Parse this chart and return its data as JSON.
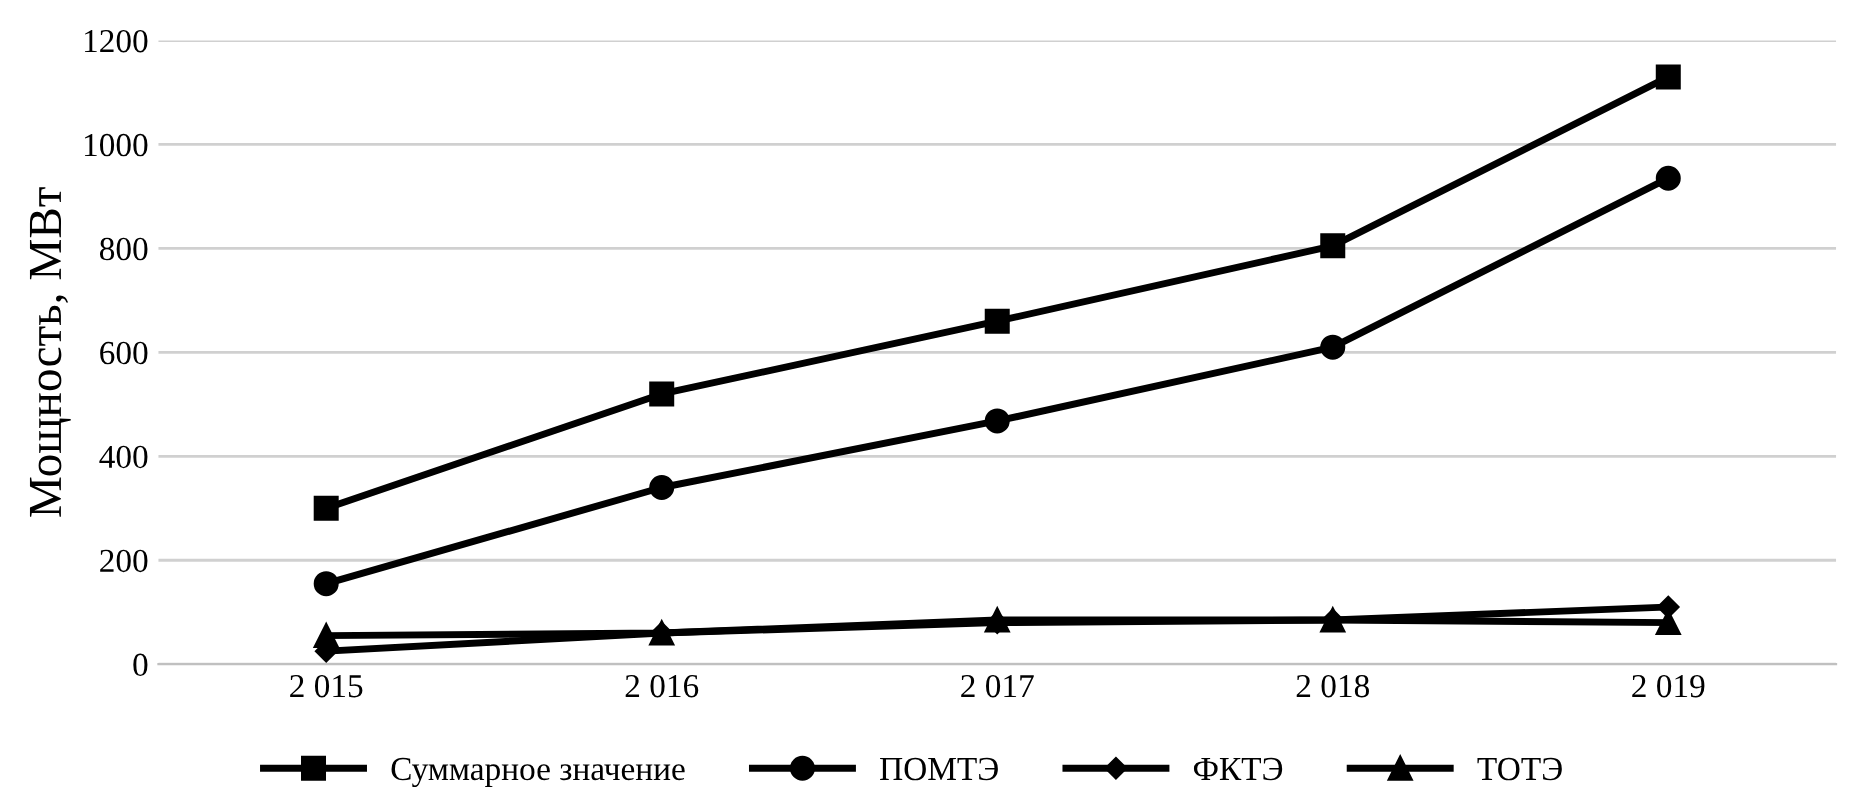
{
  "chart_data": {
    "type": "line",
    "ylabel": "Мощность, МВт",
    "categories": [
      "2 015",
      "2 016",
      "2 017",
      "2 018",
      "2 019"
    ],
    "series": [
      {
        "name": "Суммарное значение",
        "color": "#000000",
        "marker": "square",
        "values": [
          300,
          520,
          660,
          805,
          1130
        ]
      },
      {
        "name": "ПОМТЭ",
        "color": "#000000",
        "marker": "circle",
        "values": [
          155,
          340,
          468,
          610,
          935
        ]
      },
      {
        "name": "ФКТЭ",
        "color": "#000000",
        "marker": "diamond",
        "values": [
          25,
          60,
          80,
          85,
          110
        ]
      },
      {
        "name": "ТОТЭ",
        "color": "#000000",
        "marker": "triangle",
        "values": [
          55,
          60,
          85,
          85,
          80
        ]
      }
    ],
    "ylim": [
      0,
      1200
    ],
    "yticks": [
      0,
      200,
      400,
      600,
      800,
      1000,
      1200
    ],
    "grid": "y",
    "legend": "bottom",
    "line_style": "solid"
  }
}
